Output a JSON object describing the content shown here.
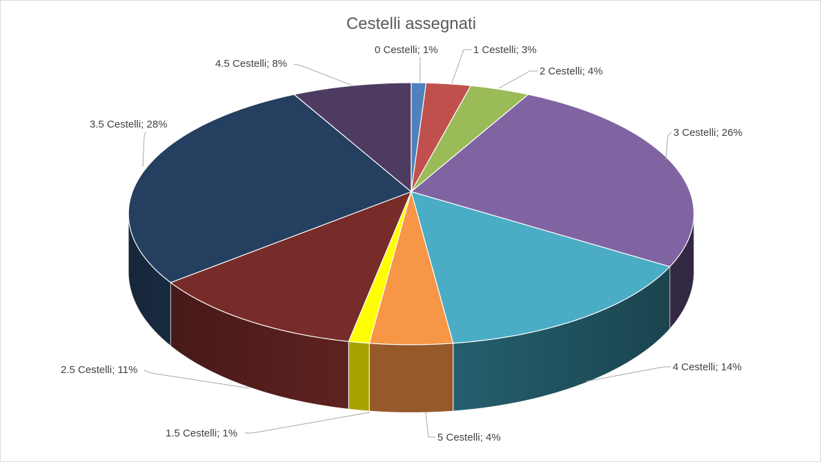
{
  "chart_data": {
    "type": "pie",
    "three_d": true,
    "title": "Cestelli assegnati",
    "categories": [
      "0 Cestelli",
      "1 Cestelli",
      "2 Cestelli",
      "3 Cestelli",
      "4 Cestelli",
      "5 Cestelli",
      "1.5 Cestelli",
      "2.5 Cestelli",
      "3.5 Cestelli",
      "4.5 Cestelli"
    ],
    "values": [
      1,
      3,
      4,
      26,
      14,
      4,
      1,
      11,
      28,
      8
    ],
    "value_unit": "%",
    "label_separator": "; ",
    "legend": "none",
    "colors": [
      "#4F81BD",
      "#C0504D",
      "#9BBB59",
      "#8064A2",
      "#4BACC6",
      "#F79646",
      "#FFFF00",
      "#772C2A",
      "#243F60",
      "#4D3B62"
    ],
    "side_colors": [
      "#2F4D71",
      "#73302E",
      "#5D7035",
      "#4A3A60",
      "#25606F",
      "#96592A",
      "#A6A300",
      "#5E2220",
      "#213956",
      "#33283F"
    ]
  }
}
